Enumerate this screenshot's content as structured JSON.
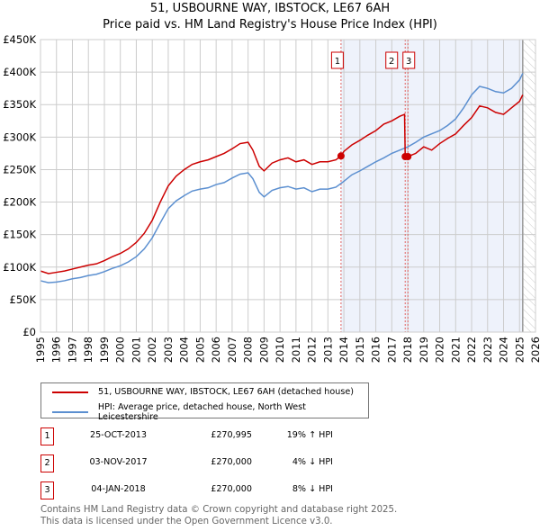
{
  "chart_data": {
    "type": "line",
    "title": "51, USBOURNE WAY, IBSTOCK, LE67 6AH",
    "subtitle": "Price paid vs. HM Land Registry's House Price Index (HPI)",
    "xlim": [
      1995,
      2026
    ],
    "ylim": [
      0,
      450000
    ],
    "x_ticks": [
      "1995",
      "1996",
      "1997",
      "1998",
      "1999",
      "2000",
      "2001",
      "2002",
      "2003",
      "2004",
      "2005",
      "2006",
      "2007",
      "2008",
      "2009",
      "2010",
      "2011",
      "2012",
      "2013",
      "2014",
      "2015",
      "2016",
      "2017",
      "2018",
      "2019",
      "2020",
      "2021",
      "2022",
      "2023",
      "2024",
      "2025",
      "2026"
    ],
    "y_ticks": [
      {
        "v": 0,
        "label": "£0"
      },
      {
        "v": 50000,
        "label": "£50K"
      },
      {
        "v": 100000,
        "label": "£100K"
      },
      {
        "v": 150000,
        "label": "£150K"
      },
      {
        "v": 200000,
        "label": "£200K"
      },
      {
        "v": 250000,
        "label": "£250K"
      },
      {
        "v": 300000,
        "label": "£300K"
      },
      {
        "v": 350000,
        "label": "£350K"
      },
      {
        "v": 400000,
        "label": "£400K"
      },
      {
        "v": 450000,
        "label": "£450K"
      }
    ],
    "grid": true,
    "shaded_from": 2013.82,
    "forecast_from": 2025.2,
    "series": [
      {
        "name": "51, USBOURNE WAY, IBSTOCK, LE67 6AH (detached house)",
        "color": "#cc0000",
        "x": [
          1995,
          1995.5,
          1996,
          1996.5,
          1997,
          1997.5,
          1998,
          1998.5,
          1999,
          1999.5,
          2000,
          2000.5,
          2001,
          2001.5,
          2002,
          2002.5,
          2003,
          2003.5,
          2004,
          2004.5,
          2005,
          2005.5,
          2006,
          2006.5,
          2007,
          2007.5,
          2008,
          2008.3,
          2008.7,
          2009,
          2009.5,
          2010,
          2010.5,
          2011,
          2011.5,
          2012,
          2012.5,
          2013,
          2013.5,
          2013.82,
          2014,
          2014.5,
          2015,
          2015.5,
          2016,
          2016.5,
          2017,
          2017.5,
          2017.8,
          2017.84,
          2018.01,
          2018.5,
          2019,
          2019.5,
          2020,
          2020.5,
          2021,
          2021.5,
          2022,
          2022.5,
          2023,
          2023.5,
          2024,
          2024.5,
          2025,
          2025.2
        ],
        "y": [
          94000,
          90000,
          92000,
          94000,
          97000,
          100000,
          103000,
          105000,
          110000,
          116000,
          121000,
          128000,
          138000,
          152000,
          172000,
          200000,
          225000,
          240000,
          250000,
          258000,
          262000,
          265000,
          270000,
          275000,
          282000,
          290000,
          292000,
          280000,
          255000,
          248000,
          260000,
          265000,
          268000,
          262000,
          265000,
          258000,
          262000,
          262000,
          265000,
          270995,
          278000,
          288000,
          295000,
          303000,
          310000,
          320000,
          325000,
          332000,
          335000,
          270000,
          270000,
          275000,
          285000,
          280000,
          290000,
          298000,
          305000,
          318000,
          330000,
          348000,
          345000,
          338000,
          335000,
          345000,
          355000,
          365000
        ]
      },
      {
        "name": "HPI: Average price, detached house, North West Leicestershire",
        "color": "#5b8fd0",
        "x": [
          1995,
          1995.5,
          1996,
          1996.5,
          1997,
          1997.5,
          1998,
          1998.5,
          1999,
          1999.5,
          2000,
          2000.5,
          2001,
          2001.5,
          2002,
          2002.5,
          2003,
          2003.5,
          2004,
          2004.5,
          2005,
          2005.5,
          2006,
          2006.5,
          2007,
          2007.5,
          2008,
          2008.3,
          2008.7,
          2009,
          2009.5,
          2010,
          2010.5,
          2011,
          2011.5,
          2012,
          2012.5,
          2013,
          2013.5,
          2014,
          2014.5,
          2015,
          2015.5,
          2016,
          2016.5,
          2017,
          2017.5,
          2018,
          2018.5,
          2019,
          2019.5,
          2020,
          2020.5,
          2021,
          2021.5,
          2022,
          2022.5,
          2023,
          2023.5,
          2024,
          2024.5,
          2025,
          2025.2
        ],
        "y": [
          79000,
          76000,
          77000,
          79000,
          82000,
          84000,
          87000,
          89000,
          93000,
          98000,
          102000,
          108000,
          116000,
          128000,
          145000,
          168000,
          190000,
          202000,
          210000,
          217000,
          220000,
          222000,
          227000,
          230000,
          237000,
          243000,
          245000,
          236000,
          215000,
          208000,
          218000,
          222000,
          224000,
          220000,
          222000,
          216000,
          220000,
          220000,
          223000,
          232000,
          242000,
          248000,
          255000,
          262000,
          268000,
          275000,
          280000,
          285000,
          292000,
          300000,
          305000,
          310000,
          318000,
          328000,
          345000,
          365000,
          378000,
          375000,
          370000,
          368000,
          375000,
          388000,
          398000
        ]
      }
    ],
    "markers": [
      {
        "label": "1",
        "x": 2013.82,
        "y": 270995
      },
      {
        "label": "2",
        "x": 2017.84,
        "y": 270000
      },
      {
        "label": "3",
        "x": 2018.01,
        "y": 270000
      }
    ]
  },
  "legend": {
    "items": [
      "51, USBOURNE WAY, IBSTOCK, LE67 6AH (detached house)",
      "HPI: Average price, detached house, North West Leicestershire"
    ]
  },
  "transactions": [
    {
      "num": "1",
      "date": "25-OCT-2013",
      "price": "£270,995",
      "diff": "19% ↑ HPI"
    },
    {
      "num": "2",
      "date": "03-NOV-2017",
      "price": "£270,000",
      "diff": "4% ↓ HPI"
    },
    {
      "num": "3",
      "date": "04-JAN-2018",
      "price": "£270,000",
      "diff": "8% ↓ HPI"
    }
  ],
  "footer": {
    "line1": "Contains HM Land Registry data © Crown copyright and database right 2025.",
    "line2": "This data is licensed under the Open Government Licence v3.0."
  }
}
